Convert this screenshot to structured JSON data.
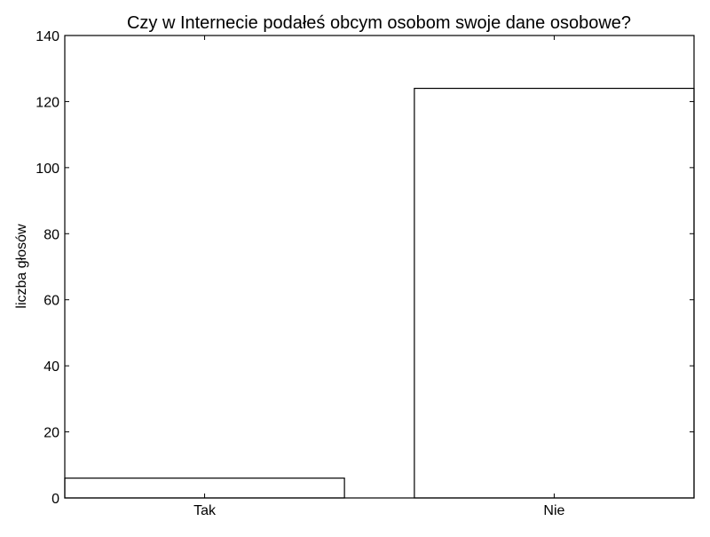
{
  "chart_data": {
    "type": "bar",
    "title": "Czy w Internecie podałeś obcym osobom swoje dane osobowe?",
    "xlabel": "",
    "ylabel": "liczba głosów",
    "categories": [
      "Tak",
      "Nie"
    ],
    "values": [
      6,
      124
    ],
    "ylim": [
      0,
      140
    ],
    "yticks": [
      0,
      20,
      40,
      60,
      80,
      100,
      120,
      140
    ],
    "grid": false,
    "legend": "none",
    "colors": {
      "bar_fill": "#ffffff",
      "bar_stroke": "#000000",
      "axis": "#000000"
    }
  }
}
